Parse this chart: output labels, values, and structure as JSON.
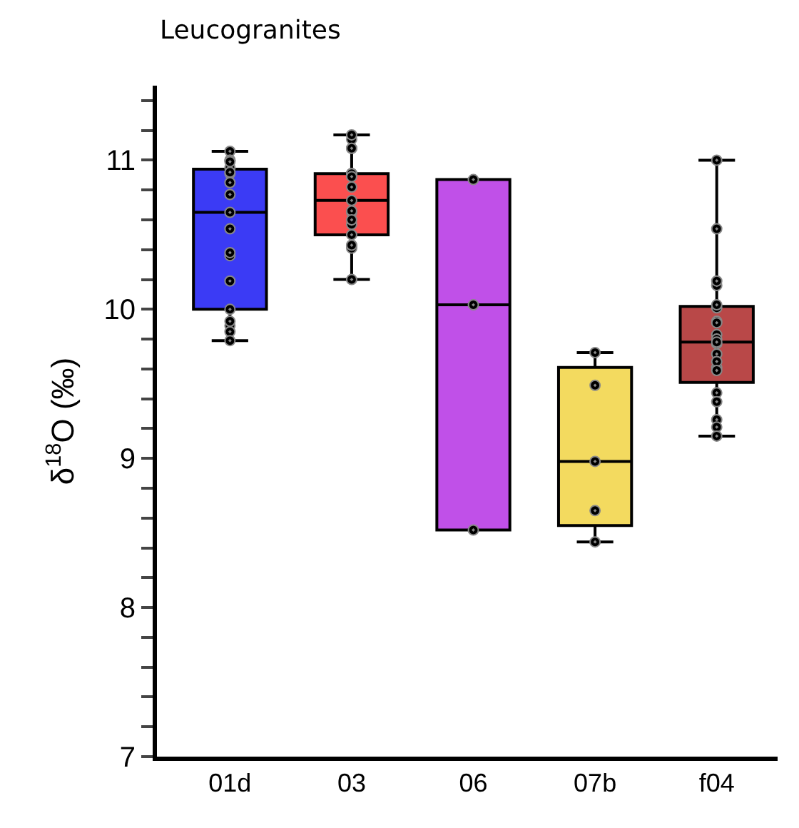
{
  "chart_data": {
    "type": "box",
    "title": "Leucogranites",
    "ylabel": "δ$^{18}$O (‰)",
    "categories": [
      "01d",
      "03",
      "06",
      "07b",
      "f04"
    ],
    "colors": [
      "#3b3bf5",
      "#fb4f4f",
      "#c050e8",
      "#f3da5f",
      "#b94848"
    ],
    "boxes": [
      {
        "low": 9.79,
        "q1": 10.0,
        "median": 10.65,
        "q3": 10.94,
        "high": 11.06
      },
      {
        "low": 10.2,
        "q1": 10.5,
        "median": 10.73,
        "q3": 10.91,
        "high": 11.17
      },
      {
        "low": 8.52,
        "q1": 8.52,
        "median": 10.03,
        "q3": 10.87,
        "high": 10.87
      },
      {
        "low": 8.44,
        "q1": 8.55,
        "median": 8.98,
        "q3": 9.61,
        "high": 9.71
      },
      {
        "low": 9.15,
        "q1": 9.51,
        "median": 9.78,
        "q3": 10.02,
        "high": 11.0
      }
    ],
    "series": [
      {
        "type": "scatter",
        "color": "#000000",
        "x": [
          "01d",
          "01d",
          "01d",
          "01d",
          "01d",
          "01d",
          "01d",
          "01d",
          "01d",
          "01d",
          "01d",
          "01d",
          "01d",
          "01d",
          "01d",
          "01d",
          "01d",
          "01d",
          "01d",
          "03",
          "03",
          "03",
          "03",
          "03",
          "03",
          "03",
          "03",
          "03",
          "03",
          "03",
          "03",
          "03",
          "03",
          "03",
          "03",
          "03",
          "03",
          "03",
          "06",
          "06",
          "06",
          "07b",
          "07b",
          "07b",
          "07b",
          "07b",
          "f04",
          "f04",
          "f04",
          "f04",
          "f04",
          "f04",
          "f04",
          "f04",
          "f04",
          "f04",
          "f04",
          "f04",
          "f04",
          "f04",
          "f04",
          "f04",
          "f04",
          "f04",
          "f04",
          "f04",
          "f04"
        ],
        "values": [
          11.06,
          10.95,
          11.0,
          10.91,
          11.0,
          10.92,
          10.85,
          10.99,
          10.77,
          10.65,
          10.54,
          10.36,
          10.38,
          10.19,
          10.0,
          9.89,
          9.92,
          9.85,
          9.79,
          11.14,
          11.08,
          11.17,
          11.08,
          10.91,
          10.91,
          10.91,
          10.89,
          10.82,
          10.73,
          10.65,
          10.66,
          10.57,
          10.6,
          10.5,
          10.43,
          10.41,
          10.43,
          10.2,
          10.87,
          10.03,
          8.52,
          9.71,
          9.49,
          8.98,
          8.65,
          8.44,
          11.0,
          10.54,
          10.16,
          10.19,
          10.01,
          10.03,
          9.92,
          9.91,
          9.83,
          9.8,
          9.77,
          9.78,
          9.7,
          9.61,
          9.65,
          9.59,
          9.44,
          9.38,
          9.26,
          9.21,
          9.15
        ]
      }
    ],
    "marker": "circle",
    "ylim": [
      7,
      11.5
    ],
    "yticks": [
      7,
      {
        "value": 7.2,
        "label": null
      },
      {
        "value": 7.4,
        "label": null
      },
      {
        "value": 7.6,
        "label": null
      },
      {
        "value": 7.8,
        "label": null
      },
      8,
      {
        "value": 8.2,
        "label": null
      },
      {
        "value": 8.4,
        "label": null
      },
      {
        "value": 8.6,
        "label": null
      },
      {
        "value": 8.8,
        "label": null
      },
      9,
      {
        "value": 9.2,
        "label": null
      },
      {
        "value": 9.4,
        "label": null
      },
      {
        "value": 9.6,
        "label": null
      },
      {
        "value": 9.8,
        "label": null
      },
      10,
      {
        "value": 10.2,
        "label": null
      },
      {
        "value": 10.4,
        "label": null
      },
      {
        "value": 10.6,
        "label": null
      },
      {
        "value": 10.8,
        "label": null
      },
      11,
      {
        "value": 11.2,
        "label": null
      },
      {
        "value": 11.4,
        "label": null
      }
    ]
  }
}
